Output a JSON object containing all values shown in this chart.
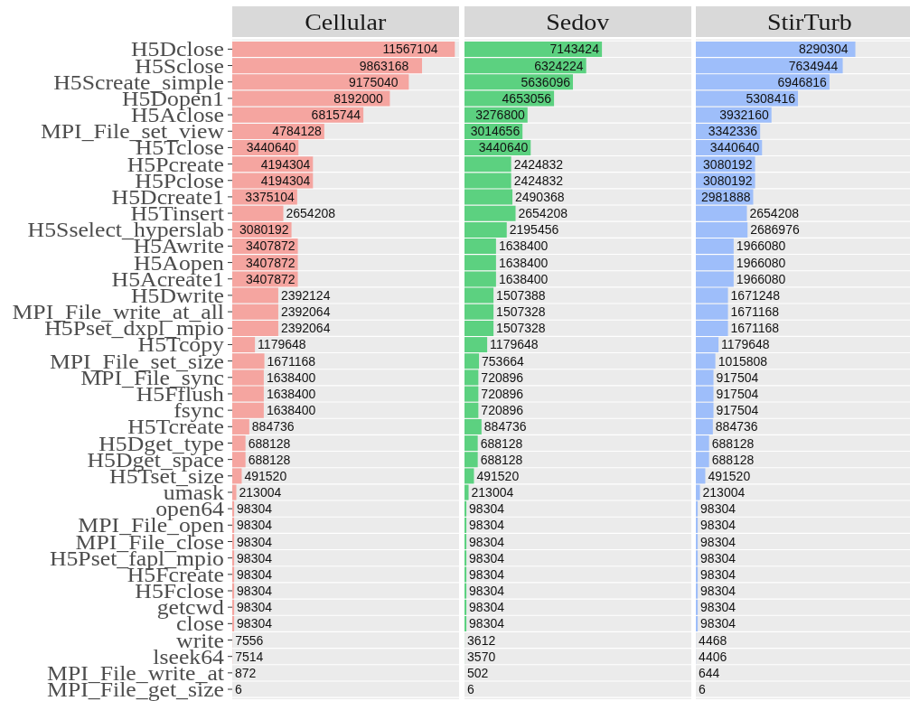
{
  "chart_data": [
    {
      "type": "bar",
      "title": "Cellular",
      "orientation": "horizontal",
      "data_labels": true,
      "grid": "y",
      "tick_labels": "y",
      "color": "#f5a5a0",
      "categories": [
        "H5Dclose",
        "H5Sclose",
        "H5Screate_simple",
        "H5Dopen1",
        "H5Aclose",
        "MPI_File_set_view",
        "H5Tclose",
        "H5Pcreate",
        "H5Pclose",
        "H5Dcreate1",
        "H5Tinsert",
        "H5Sselect_hyperslab",
        "H5Awrite",
        "H5Aopen",
        "H5Acreate1",
        "H5Dwrite",
        "MPI_File_write_at_all",
        "H5Pset_dxpl_mpio",
        "H5Tcopy",
        "MPI_File_set_size",
        "MPI_File_sync",
        "H5Fflush",
        "fsync",
        "H5Tcreate",
        "H5Dget_type",
        "H5Dget_space",
        "H5Tset_size",
        "umask",
        "open64",
        "MPI_File_open",
        "MPI_File_close",
        "H5Pset_fapl_mpio",
        "H5Fcreate",
        "H5Fclose",
        "getcwd",
        "close",
        "write",
        "lseek64",
        "MPI_File_write_at",
        "MPI_File_get_size"
      ],
      "values": [
        11567104,
        9863168,
        9175040,
        8192000,
        6815744,
        4784128,
        3440640,
        4194304,
        4194304,
        3375104,
        2654208,
        3080192,
        3407872,
        3407872,
        3407872,
        2392124,
        2392064,
        2392064,
        1179648,
        1671168,
        1638400,
        1638400,
        1638400,
        884736,
        688128,
        688128,
        491520,
        213004,
        98304,
        98304,
        98304,
        98304,
        98304,
        98304,
        98304,
        98304,
        7556,
        7514,
        872,
        6
      ]
    },
    {
      "type": "bar",
      "title": "Sedov",
      "orientation": "horizontal",
      "data_labels": true,
      "grid": "y",
      "tick_labels": false,
      "color": "#5cd180",
      "categories": [
        null,
        null,
        null,
        null,
        null,
        null,
        null,
        null,
        null,
        null,
        null,
        null,
        null,
        null,
        null,
        null,
        null,
        null,
        null,
        null,
        null,
        null,
        null,
        null,
        null,
        null,
        null,
        null,
        null,
        null,
        null,
        null,
        null,
        null,
        null,
        null,
        null,
        null,
        null,
        null
      ],
      "values": [
        7143424,
        6324224,
        5636096,
        4653056,
        3276800,
        3014656,
        3440640,
        2424832,
        2424832,
        2490368,
        2654208,
        2195456,
        1638400,
        1638400,
        1638400,
        1507388,
        1507328,
        1507328,
        1179648,
        753664,
        720896,
        720896,
        720896,
        884736,
        688128,
        688128,
        491520,
        213004,
        98304,
        98304,
        98304,
        98304,
        98304,
        98304,
        98304,
        98304,
        3612,
        3570,
        502,
        6
      ]
    },
    {
      "type": "bar",
      "title": "StirTurb",
      "orientation": "horizontal",
      "data_labels": true,
      "grid": "y",
      "tick_labels": false,
      "color": "#9ebefa",
      "categories": [
        null,
        null,
        null,
        null,
        null,
        null,
        null,
        null,
        null,
        null,
        null,
        null,
        null,
        null,
        null,
        null,
        null,
        null,
        null,
        null,
        null,
        null,
        null,
        null,
        null,
        null,
        null,
        null,
        null,
        null,
        null,
        null,
        null,
        null,
        null,
        null,
        null,
        null,
        null,
        null
      ],
      "values": [
        8290304,
        7634944,
        6946816,
        5308416,
        3932160,
        3342336,
        3440640,
        3080192,
        3080192,
        2981888,
        2654208,
        2686976,
        1966080,
        1966080,
        1966080,
        1671248,
        1671168,
        1671168,
        1179648,
        1015808,
        917504,
        917504,
        917504,
        884736,
        688128,
        688128,
        491520,
        213004,
        98304,
        98304,
        98304,
        98304,
        98304,
        98304,
        98304,
        98304,
        4468,
        4406,
        644,
        6
      ]
    }
  ]
}
